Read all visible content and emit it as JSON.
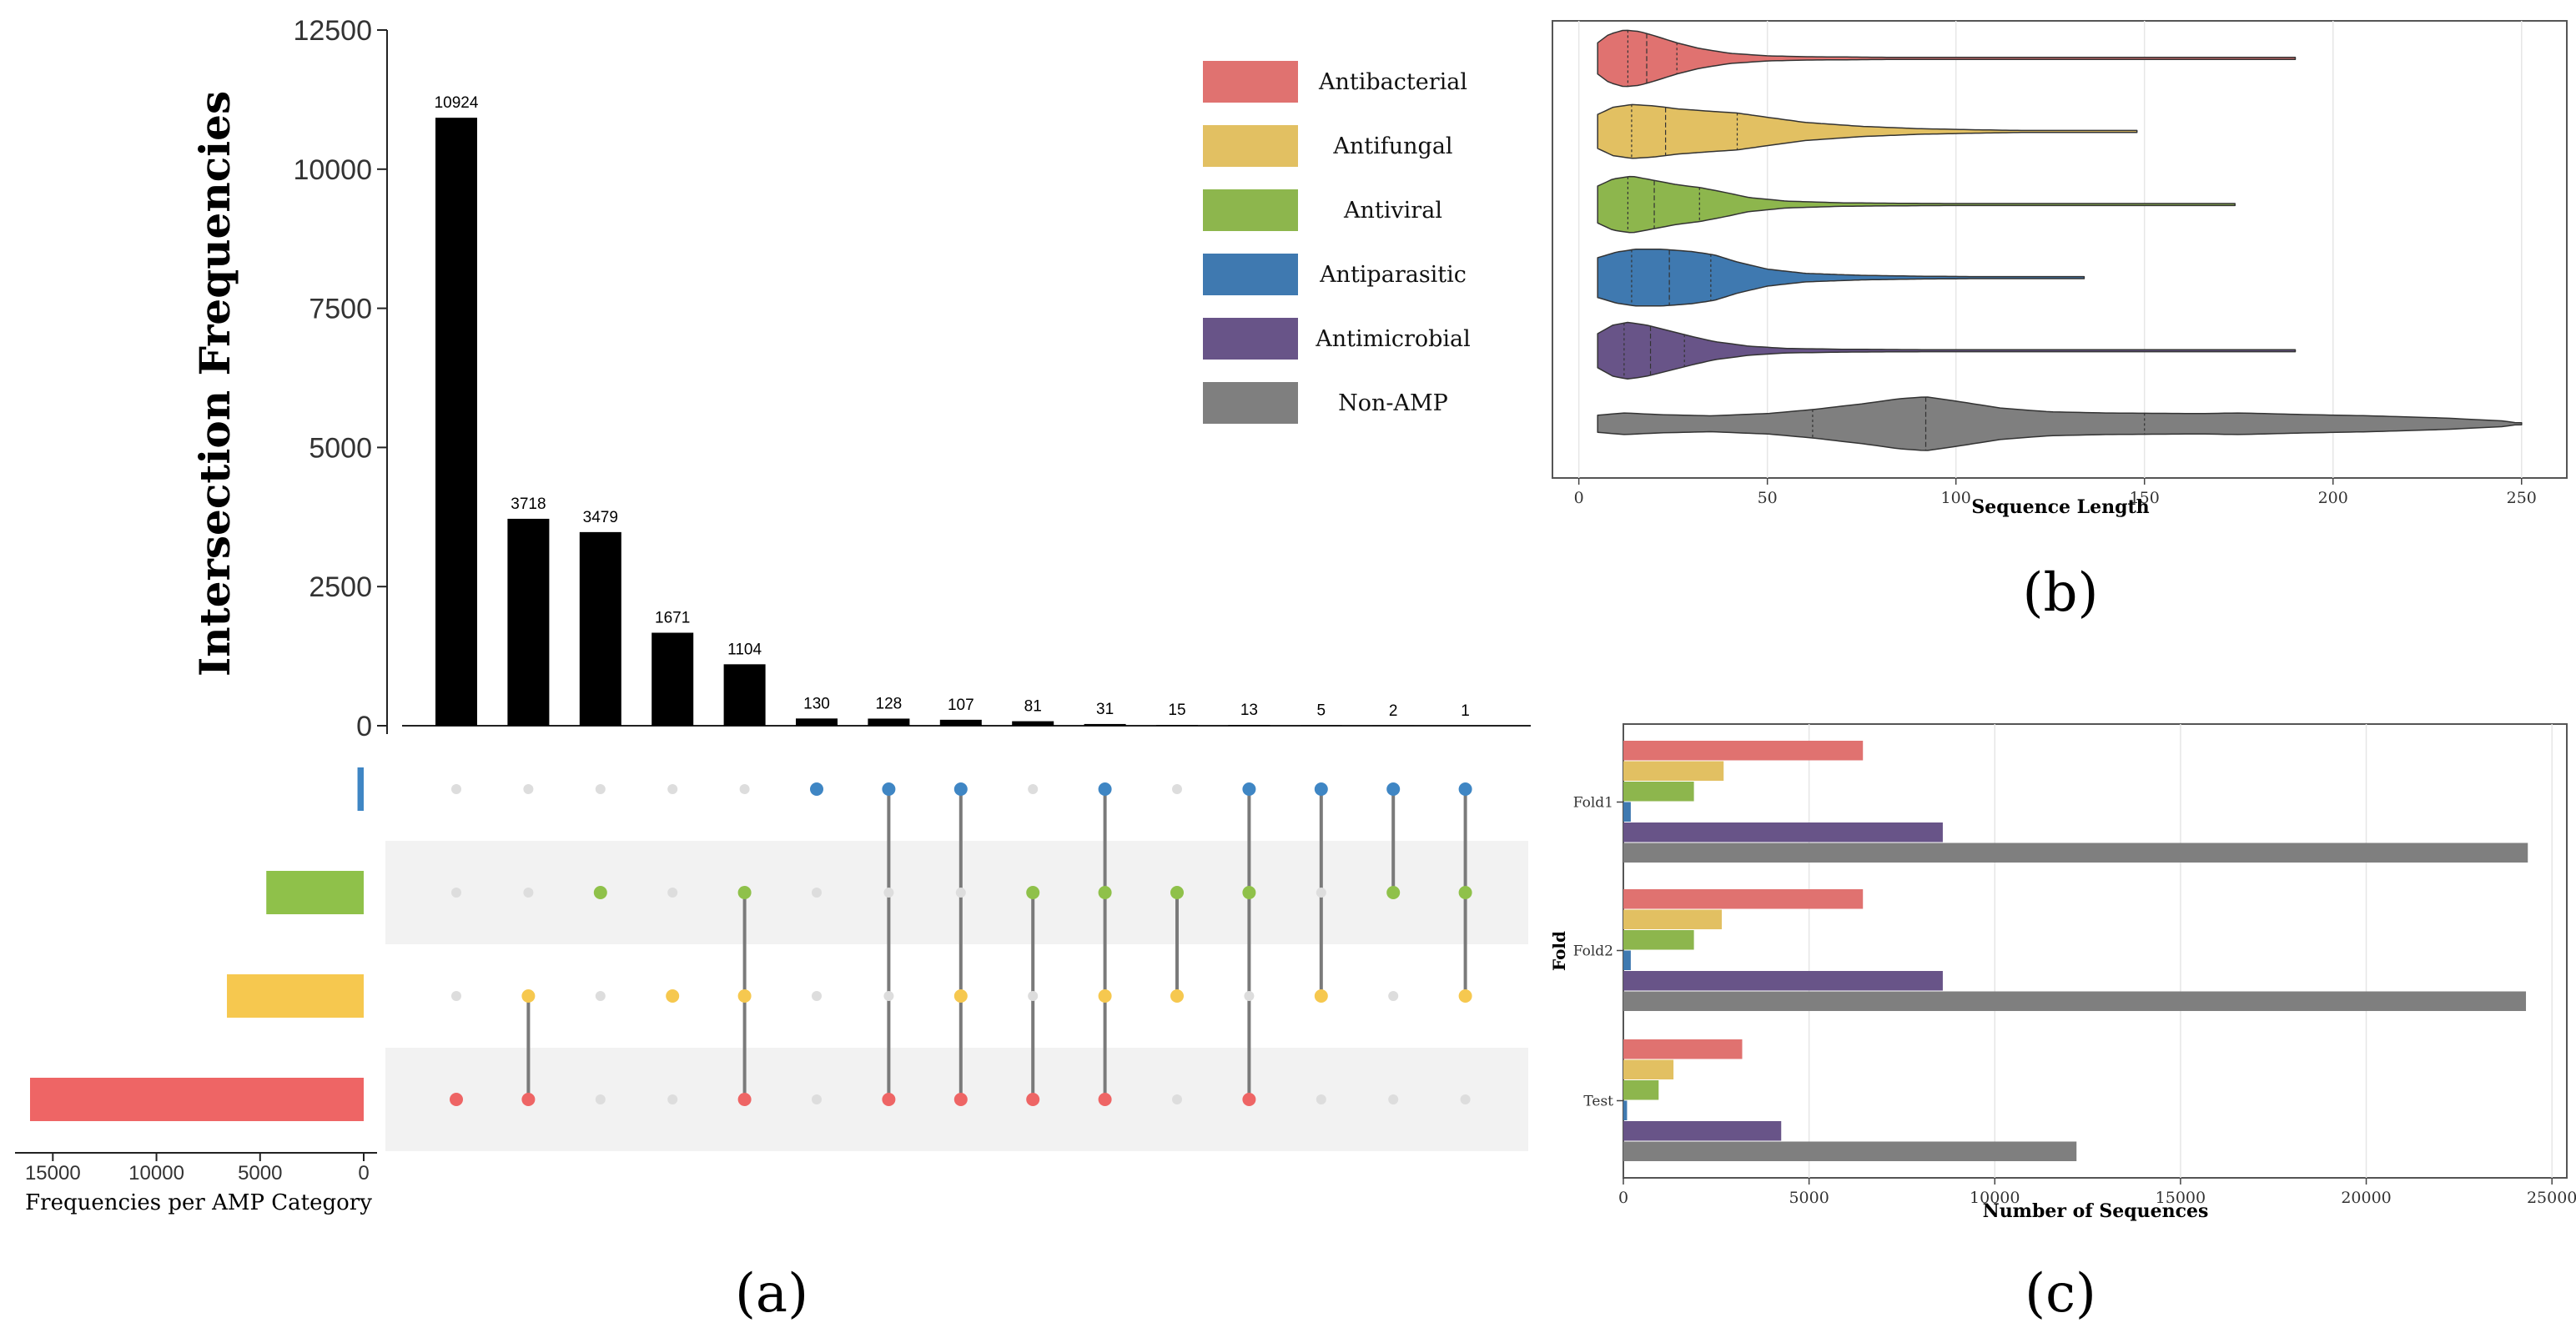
{
  "colors": {
    "Antibacterial": "#e07270",
    "Antifungal": "#e2c062",
    "Antiviral": "#8db64d",
    "Antiparasitic": "#3f79b0",
    "Antimicrobial": "#685488",
    "Non-AMP": "#7f7f7f"
  },
  "chart_data": [
    {
      "id": "a",
      "type": "bar",
      "subtype": "upset",
      "panel_label": "(a)",
      "ylabel": "Intersection Frequencies",
      "ylim": [
        0,
        12500
      ],
      "yticks": [
        0,
        2500,
        5000,
        7500,
        10000,
        12500
      ],
      "ytick_labels": [
        "0",
        "2500",
        "5000",
        "7500",
        "10000",
        "12500"
      ],
      "intersection_values": [
        10924,
        3718,
        3479,
        1671,
        1104,
        130,
        128,
        107,
        81,
        31,
        15,
        13,
        5,
        2,
        1
      ],
      "value_labels": [
        "10924",
        "3718",
        "3479",
        "1671",
        "1104",
        "130",
        "128",
        "107",
        "81",
        "31",
        "15",
        "13",
        "5",
        "2",
        "1"
      ],
      "sets": [
        "Antiparasitic",
        "Antiviral",
        "Antifungal",
        "Antibacterial"
      ],
      "set_sizes": [
        300,
        4700,
        6600,
        16100
      ],
      "set_size_xlabel": "Frequencies per AMP Category",
      "set_size_xticks": [
        15000,
        10000,
        5000,
        0
      ],
      "set_size_xtick_labels": [
        "15000",
        "10000",
        "5000",
        "0"
      ],
      "membership": [
        [
          3
        ],
        [
          2,
          3
        ],
        [
          1
        ],
        [
          2
        ],
        [
          1,
          2,
          3
        ],
        [
          0
        ],
        [
          0,
          3
        ],
        [
          0,
          2,
          3
        ],
        [
          1,
          3
        ],
        [
          0,
          1,
          2,
          3
        ],
        [
          1,
          2
        ],
        [
          0,
          1,
          3
        ],
        [
          0,
          2
        ],
        [
          0,
          1
        ],
        [
          0,
          1,
          2
        ]
      ]
    },
    {
      "id": "b",
      "type": "violin",
      "panel_label": "(b)",
      "xlabel": "Sequence Length",
      "xlim": [
        -7,
        262
      ],
      "xticks": [
        0,
        50,
        100,
        150,
        200,
        250
      ],
      "xtick_labels": [
        "0",
        "50",
        "100",
        "150",
        "200",
        "250"
      ],
      "categories": [
        "Antibacterial",
        "Antifungal",
        "Antiviral",
        "Antiparasitic",
        "Antimicrobial",
        "Non-AMP"
      ],
      "series": [
        {
          "name": "Antibacterial",
          "min": 5,
          "max": 190,
          "quartiles": [
            13,
            18,
            26
          ],
          "density": [
            [
              5,
              0.55
            ],
            [
              8,
              0.85
            ],
            [
              12,
              1.0
            ],
            [
              16,
              0.95
            ],
            [
              20,
              0.8
            ],
            [
              26,
              0.55
            ],
            [
              32,
              0.35
            ],
            [
              40,
              0.18
            ],
            [
              50,
              0.09
            ],
            [
              60,
              0.06
            ],
            [
              80,
              0.04
            ],
            [
              100,
              0.03
            ],
            [
              130,
              0.02
            ],
            [
              160,
              0.015
            ],
            [
              190,
              0.01
            ]
          ]
        },
        {
          "name": "Antifungal",
          "min": 5,
          "max": 148,
          "quartiles": [
            14,
            23,
            42
          ],
          "density": [
            [
              5,
              0.6
            ],
            [
              9,
              0.85
            ],
            [
              14,
              0.95
            ],
            [
              20,
              0.9
            ],
            [
              26,
              0.8
            ],
            [
              34,
              0.72
            ],
            [
              42,
              0.65
            ],
            [
              50,
              0.5
            ],
            [
              60,
              0.32
            ],
            [
              75,
              0.18
            ],
            [
              90,
              0.1
            ],
            [
              105,
              0.06
            ],
            [
              120,
              0.03
            ],
            [
              135,
              0.015
            ],
            [
              148,
              0.008
            ]
          ]
        },
        {
          "name": "Antiviral",
          "min": 5,
          "max": 174,
          "quartiles": [
            13,
            20,
            32
          ],
          "density": [
            [
              5,
              0.65
            ],
            [
              9,
              0.9
            ],
            [
              14,
              1.0
            ],
            [
              20,
              0.85
            ],
            [
              26,
              0.7
            ],
            [
              32,
              0.6
            ],
            [
              38,
              0.45
            ],
            [
              45,
              0.25
            ],
            [
              55,
              0.12
            ],
            [
              70,
              0.06
            ],
            [
              90,
              0.04
            ],
            [
              110,
              0.03
            ],
            [
              140,
              0.02
            ],
            [
              174,
              0.01
            ]
          ]
        },
        {
          "name": "Antiparasitic",
          "min": 5,
          "max": 134,
          "quartiles": [
            14,
            24,
            35
          ],
          "density": [
            [
              5,
              0.7
            ],
            [
              10,
              0.9
            ],
            [
              15,
              1.0
            ],
            [
              22,
              1.0
            ],
            [
              30,
              0.92
            ],
            [
              36,
              0.8
            ],
            [
              42,
              0.55
            ],
            [
              50,
              0.3
            ],
            [
              60,
              0.15
            ],
            [
              75,
              0.08
            ],
            [
              90,
              0.05
            ],
            [
              110,
              0.03
            ],
            [
              134,
              0.01
            ]
          ]
        },
        {
          "name": "Antimicrobial",
          "min": 5,
          "max": 190,
          "quartiles": [
            12,
            19,
            28
          ],
          "density": [
            [
              5,
              0.6
            ],
            [
              9,
              0.9
            ],
            [
              13,
              1.0
            ],
            [
              18,
              0.9
            ],
            [
              24,
              0.7
            ],
            [
              30,
              0.5
            ],
            [
              36,
              0.32
            ],
            [
              45,
              0.16
            ],
            [
              55,
              0.08
            ],
            [
              70,
              0.05
            ],
            [
              100,
              0.03
            ],
            [
              130,
              0.02
            ],
            [
              160,
              0.015
            ],
            [
              190,
              0.01
            ]
          ]
        },
        {
          "name": "Non-AMP",
          "min": 5,
          "max": 250,
          "quartiles": [
            62,
            92,
            150
          ],
          "density": [
            [
              5,
              0.3
            ],
            [
              12,
              0.38
            ],
            [
              22,
              0.32
            ],
            [
              35,
              0.28
            ],
            [
              50,
              0.36
            ],
            [
              62,
              0.5
            ],
            [
              75,
              0.7
            ],
            [
              85,
              0.88
            ],
            [
              92,
              0.95
            ],
            [
              100,
              0.8
            ],
            [
              112,
              0.55
            ],
            [
              125,
              0.42
            ],
            [
              140,
              0.38
            ],
            [
              150,
              0.37
            ],
            [
              165,
              0.36
            ],
            [
              175,
              0.38
            ],
            [
              190,
              0.33
            ],
            [
              210,
              0.28
            ],
            [
              230,
              0.2
            ],
            [
              245,
              0.1
            ],
            [
              250,
              0.01
            ]
          ]
        }
      ]
    },
    {
      "id": "c",
      "type": "bar",
      "orientation": "horizontal",
      "panel_label": "(c)",
      "xlabel": "Number of Sequences",
      "ylabel": "Fold",
      "xlim": [
        0,
        25400
      ],
      "xticks": [
        0,
        5000,
        10000,
        15000,
        20000,
        25000
      ],
      "xtick_labels": [
        "0",
        "5000",
        "10000",
        "15000",
        "20000",
        "25000"
      ],
      "categories": [
        "Fold1",
        "Fold2",
        "Test"
      ],
      "series": [
        {
          "name": "Antibacterial",
          "values": [
            6450,
            6450,
            3200
          ]
        },
        {
          "name": "Antifungal",
          "values": [
            2700,
            2650,
            1350
          ]
        },
        {
          "name": "Antiviral",
          "values": [
            1900,
            1900,
            950
          ]
        },
        {
          "name": "Antiparasitic",
          "values": [
            200,
            200,
            100
          ]
        },
        {
          "name": "Antimicrobial",
          "values": [
            8600,
            8600,
            4250
          ]
        },
        {
          "name": "Non-AMP",
          "values": [
            24350,
            24300,
            12200
          ]
        }
      ]
    }
  ],
  "legend": {
    "items": [
      "Antibacterial",
      "Antifungal",
      "Antiviral",
      "Antiparasitic",
      "Antimicrobial",
      "Non-AMP"
    ]
  }
}
